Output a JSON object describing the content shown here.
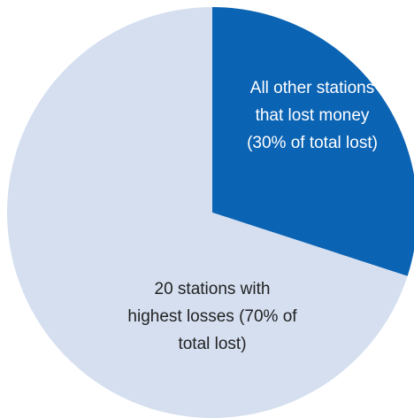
{
  "chart_data": {
    "type": "pie",
    "categories": [
      "All other stations that lost money (30% of total lost)",
      "20 stations with highest losses (70% of total lost)"
    ],
    "values": [
      30,
      70
    ],
    "colors": [
      "#0b63b3",
      "#d5dff0"
    ],
    "start_angle": 0,
    "direction": "clockwise"
  }
}
